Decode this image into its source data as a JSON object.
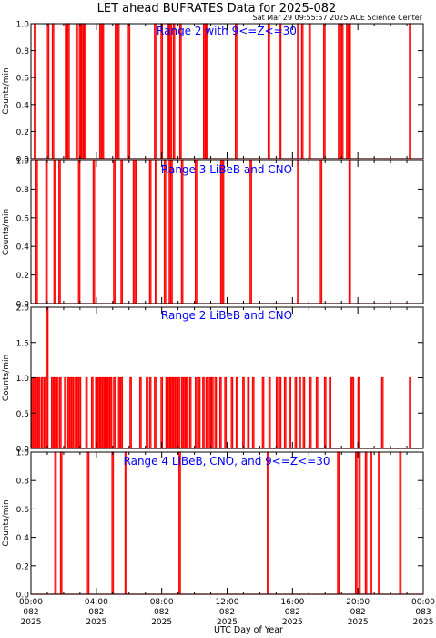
{
  "title": "LET ahead BUFRATES Data for 2025-082",
  "timestamp": "Sat Mar 29 09:55:57 2025 ACE Science Center",
  "xlabel": "UTC Day of Year",
  "colors": {
    "trace": "#ff0000",
    "panel_label": "#0000ff",
    "axes": "#000000"
  },
  "chart_data": [
    {
      "type": "line",
      "label": "Range 2 with 9<=Z<=30",
      "ylabel": "Counts/min",
      "ylim": [
        0,
        1
      ],
      "yticks": [
        "0.0",
        "0.2",
        "0.4",
        "0.6",
        "0.8",
        "1.0"
      ],
      "xlim": [
        0,
        24
      ],
      "counts": 1,
      "events": [
        0.25,
        1.05,
        1.35,
        2.15,
        2.3,
        2.8,
        3.0,
        3.15,
        3.3,
        4.25,
        4.4,
        5.2,
        5.35,
        6.0,
        7.6,
        8.0,
        8.4,
        8.55,
        8.75,
        9.15,
        10.6,
        10.75,
        12.55,
        14.55,
        15.25,
        16.35,
        16.6,
        17.05,
        17.95,
        18.85,
        18.95,
        19.05,
        19.35,
        19.5,
        23.2
      ],
      "ticks_minor": 6
    },
    {
      "type": "line",
      "label": "Range 3 LiBeB and CNO",
      "ylabel": "Counts/min",
      "ylim": [
        0,
        1
      ],
      "yticks": [
        "0.0",
        "0.2",
        "0.4",
        "0.6",
        "0.8",
        "1.0"
      ],
      "xlim": [
        0,
        24
      ],
      "counts": 1,
      "events": [
        0.35,
        0.95,
        1.45,
        1.75,
        2.95,
        3.85,
        5.1,
        5.55,
        6.3,
        6.4,
        7.3,
        7.65,
        8.2,
        8.5,
        8.6,
        9.25,
        10.1,
        11.65,
        11.75,
        13.45,
        16.35,
        17.75,
        19.5
      ],
      "ticks_minor": 6
    },
    {
      "type": "line",
      "label": "Range 2 LiBeB and CNO",
      "ylabel": "Counts/min",
      "ylim": [
        0,
        2
      ],
      "yticks": [
        "0.0",
        "0.5",
        "1.0",
        "1.5",
        "2.0"
      ],
      "xlim": [
        0,
        24
      ],
      "events": [
        {
          "t": 0.08,
          "c": 1
        },
        {
          "t": 0.2,
          "c": 1
        },
        {
          "t": 0.35,
          "c": 1
        },
        {
          "t": 0.5,
          "c": 1
        },
        {
          "t": 0.68,
          "c": 1
        },
        {
          "t": 0.85,
          "c": 1
        },
        {
          "t": 1.0,
          "c": 2
        },
        {
          "t": 1.3,
          "c": 1
        },
        {
          "t": 1.45,
          "c": 1
        },
        {
          "t": 1.62,
          "c": 1
        },
        {
          "t": 1.8,
          "c": 1
        },
        {
          "t": 2.1,
          "c": 1
        },
        {
          "t": 2.3,
          "c": 1
        },
        {
          "t": 2.42,
          "c": 1
        },
        {
          "t": 2.55,
          "c": 1
        },
        {
          "t": 2.72,
          "c": 1
        },
        {
          "t": 2.85,
          "c": 1
        },
        {
          "t": 3.0,
          "c": 1
        },
        {
          "t": 3.4,
          "c": 1
        },
        {
          "t": 3.75,
          "c": 1
        },
        {
          "t": 4.0,
          "c": 1
        },
        {
          "t": 4.15,
          "c": 1
        },
        {
          "t": 4.3,
          "c": 1
        },
        {
          "t": 4.45,
          "c": 1
        },
        {
          "t": 4.6,
          "c": 1
        },
        {
          "t": 4.75,
          "c": 1
        },
        {
          "t": 4.9,
          "c": 1
        },
        {
          "t": 5.1,
          "c": 1
        },
        {
          "t": 5.4,
          "c": 1
        },
        {
          "t": 5.55,
          "c": 1
        },
        {
          "t": 6.1,
          "c": 1
        },
        {
          "t": 6.7,
          "c": 1
        },
        {
          "t": 7.1,
          "c": 1
        },
        {
          "t": 7.3,
          "c": 1
        },
        {
          "t": 7.6,
          "c": 1
        },
        {
          "t": 8.0,
          "c": 1
        },
        {
          "t": 8.3,
          "c": 1
        },
        {
          "t": 8.45,
          "c": 1
        },
        {
          "t": 8.6,
          "c": 1
        },
        {
          "t": 8.75,
          "c": 1
        },
        {
          "t": 8.9,
          "c": 1
        },
        {
          "t": 9.05,
          "c": 1
        },
        {
          "t": 9.25,
          "c": 1
        },
        {
          "t": 9.4,
          "c": 1
        },
        {
          "t": 9.55,
          "c": 1
        },
        {
          "t": 9.75,
          "c": 1
        },
        {
          "t": 10.1,
          "c": 1
        },
        {
          "t": 10.3,
          "c": 1
        },
        {
          "t": 10.55,
          "c": 1
        },
        {
          "t": 10.75,
          "c": 1
        },
        {
          "t": 10.95,
          "c": 1
        },
        {
          "t": 11.1,
          "c": 1
        },
        {
          "t": 11.3,
          "c": 1
        },
        {
          "t": 11.6,
          "c": 1
        },
        {
          "t": 11.9,
          "c": 1
        },
        {
          "t": 12.3,
          "c": 1
        },
        {
          "t": 12.6,
          "c": 1
        },
        {
          "t": 13.0,
          "c": 1
        },
        {
          "t": 13.3,
          "c": 1
        },
        {
          "t": 13.6,
          "c": 1
        },
        {
          "t": 14.2,
          "c": 1
        },
        {
          "t": 14.6,
          "c": 1
        },
        {
          "t": 15.05,
          "c": 1
        },
        {
          "t": 15.25,
          "c": 1
        },
        {
          "t": 15.55,
          "c": 1
        },
        {
          "t": 15.85,
          "c": 1
        },
        {
          "t": 16.2,
          "c": 1
        },
        {
          "t": 16.45,
          "c": 1
        },
        {
          "t": 16.7,
          "c": 1
        },
        {
          "t": 17.1,
          "c": 1
        },
        {
          "t": 17.5,
          "c": 1
        },
        {
          "t": 18.0,
          "c": 1
        },
        {
          "t": 18.3,
          "c": 1
        },
        {
          "t": 19.6,
          "c": 1
        },
        {
          "t": 19.7,
          "c": 1
        },
        {
          "t": 20.05,
          "c": 1
        },
        {
          "t": 21.5,
          "c": 1
        },
        {
          "t": 23.2,
          "c": 1
        }
      ]
    },
    {
      "type": "line",
      "label": "Range 4 LiBeB, CNO, and 9<=Z<=30",
      "ylabel": "Counts/min",
      "ylim": [
        0,
        1
      ],
      "yticks": [
        "0.0",
        "0.2",
        "0.4",
        "0.6",
        "0.8",
        "1.0"
      ],
      "xlim": [
        0,
        24
      ],
      "counts": 1,
      "events": [
        1.5,
        1.85,
        3.5,
        5.0,
        5.8,
        9.1,
        14.5,
        18.8,
        19.9,
        20.1,
        20.5,
        20.8,
        21.3,
        22.6
      ],
      "ticks_minor": 6
    }
  ],
  "xticks": [
    {
      "time": "00:00",
      "doy": "082",
      "year": "2025"
    },
    {
      "time": "04:00",
      "doy": "082",
      "year": "2025"
    },
    {
      "time": "08:00",
      "doy": "082",
      "year": "2025"
    },
    {
      "time": "12:00",
      "doy": "082",
      "year": "2025"
    },
    {
      "time": "16:00",
      "doy": "082",
      "year": "2025"
    },
    {
      "time": "20:00",
      "doy": "082",
      "year": "2025"
    },
    {
      "time": "00:00",
      "doy": "083",
      "year": "2025"
    }
  ]
}
